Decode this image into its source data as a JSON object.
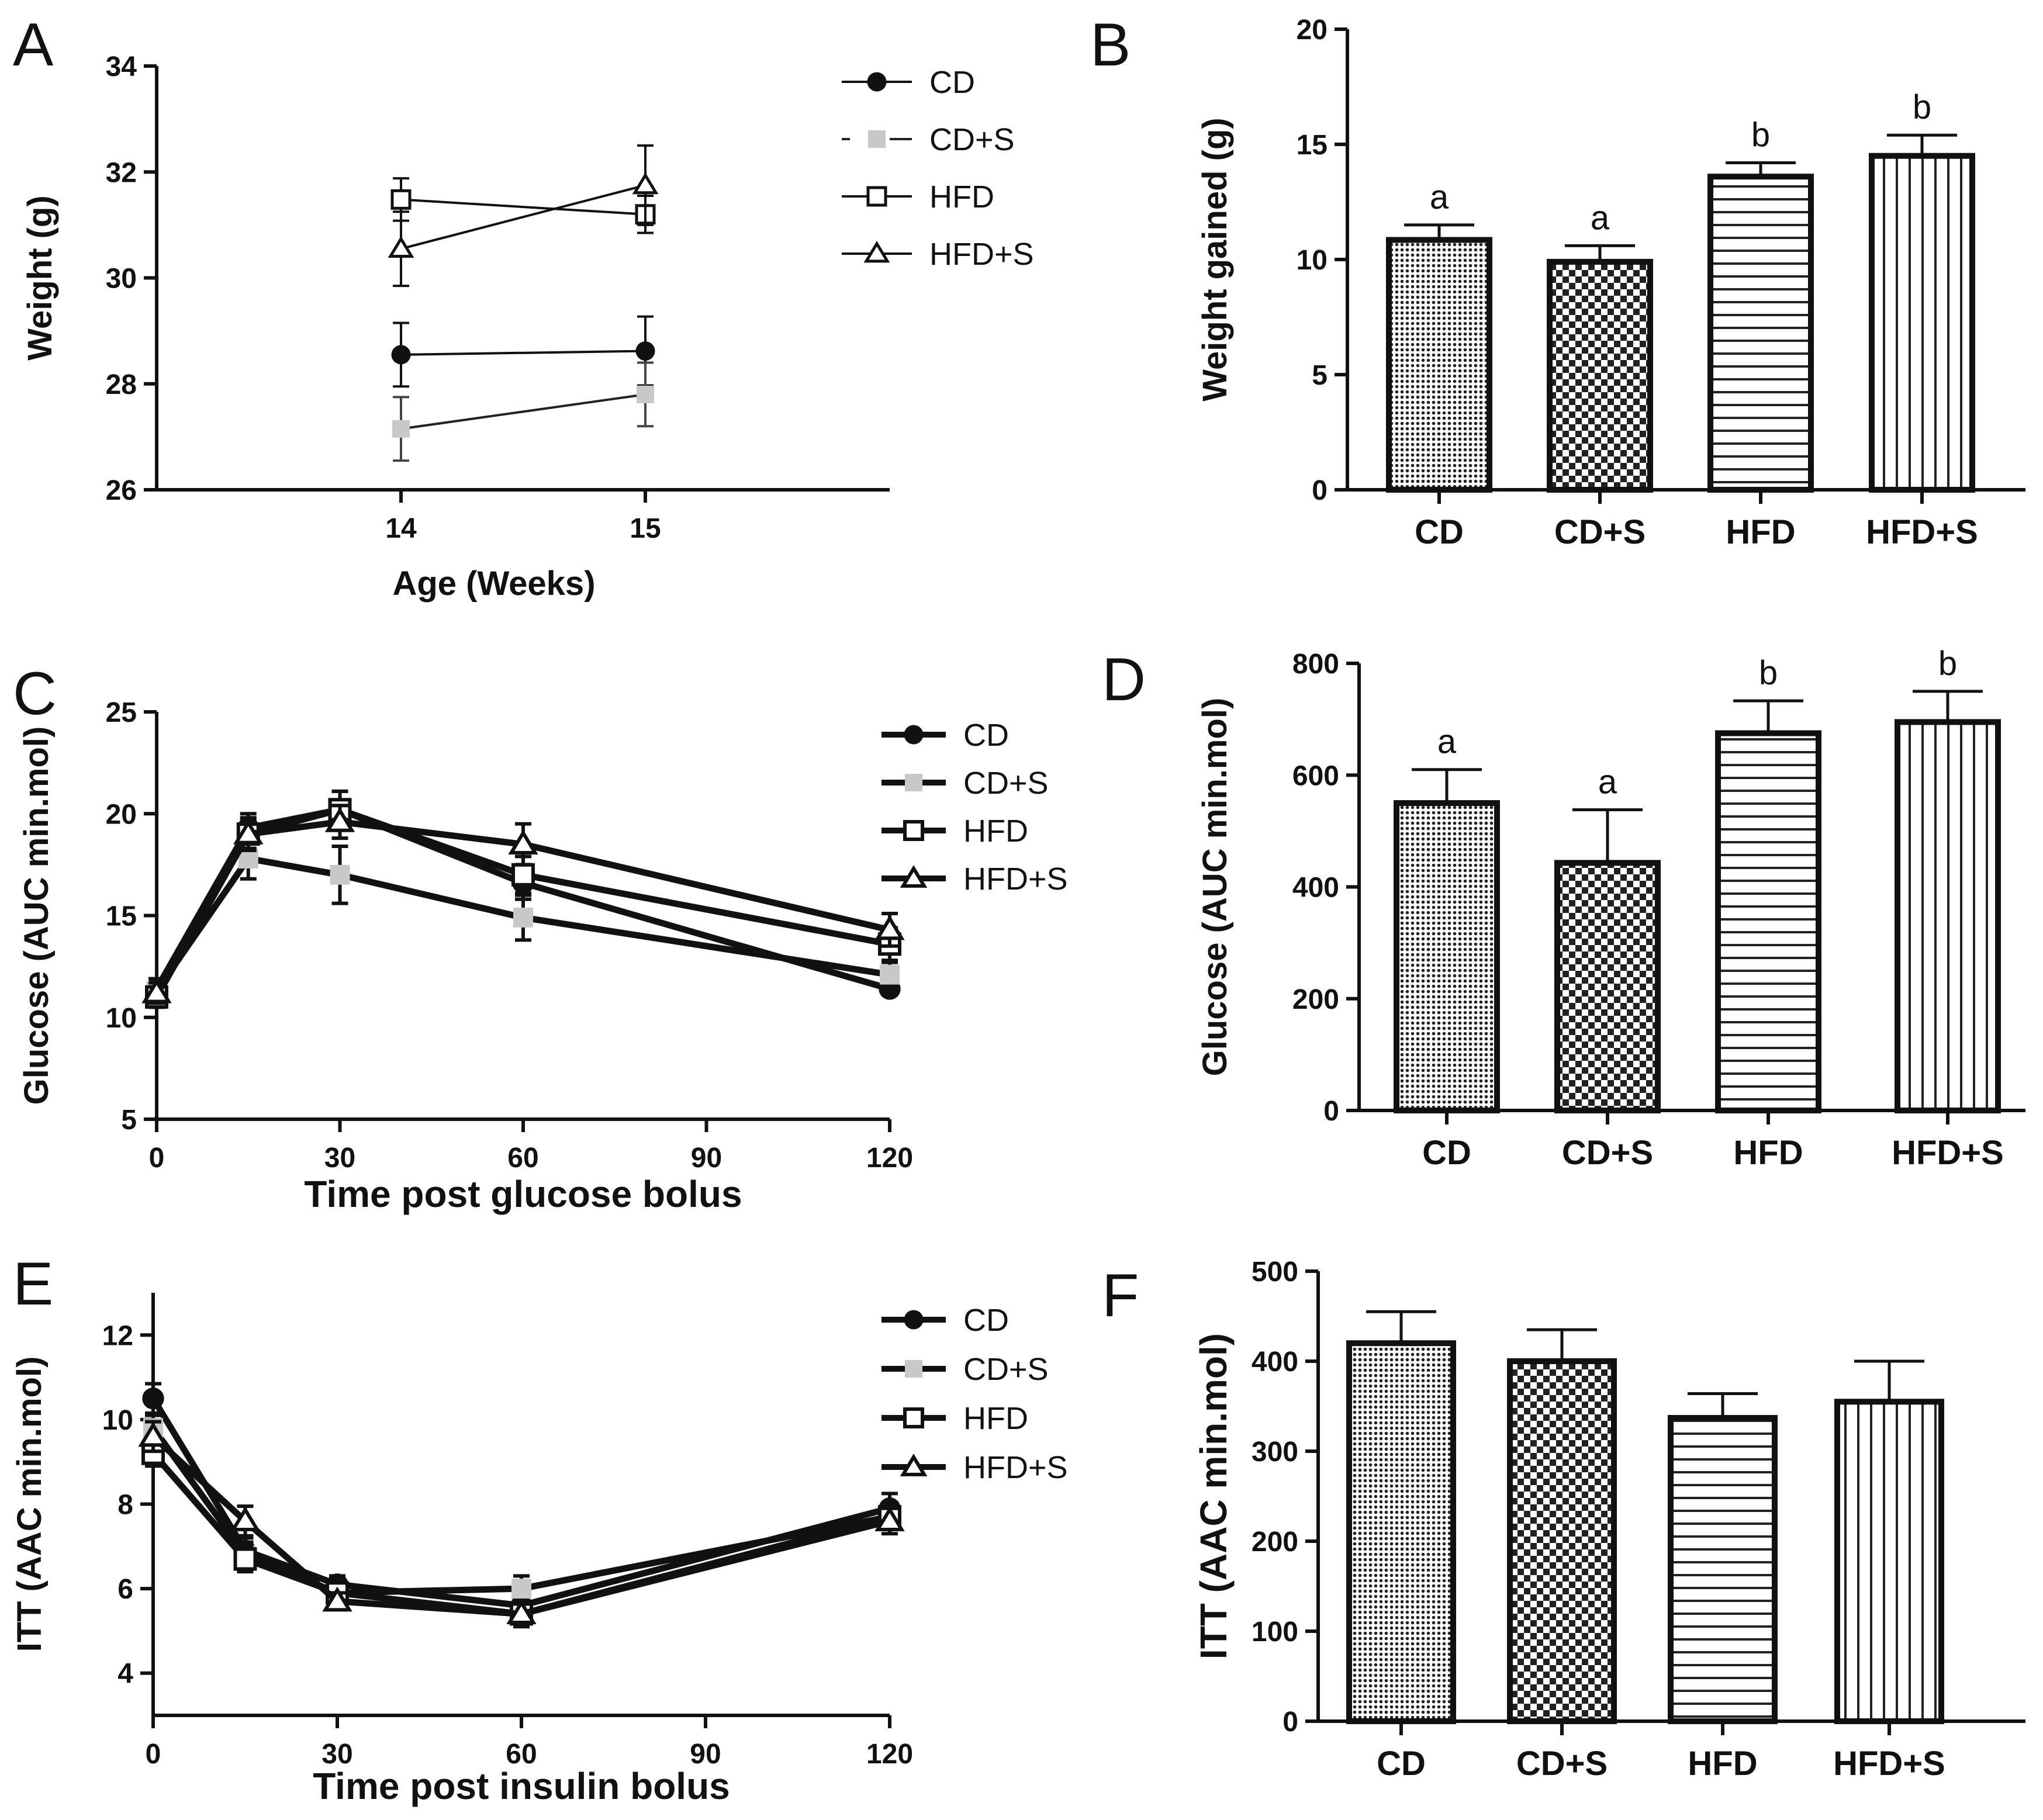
{
  "chart_data": [
    {
      "panel": "A",
      "type": "line",
      "xlabel": "Age (Weeks)",
      "ylabel": "Weight (g)",
      "xlim": [
        13,
        16
      ],
      "ylim": [
        26,
        34
      ],
      "xticks": [
        14,
        15
      ],
      "yticks": [
        26,
        28,
        30,
        32,
        34
      ],
      "x": [
        14,
        15
      ],
      "series": [
        {
          "name": "CD",
          "marker": "circle",
          "color": "#111111",
          "values": [
            28.55,
            28.62
          ],
          "errors": [
            0.6,
            0.65
          ]
        },
        {
          "name": "CD+S",
          "marker": "square",
          "color": "#c8c8c8",
          "values": [
            27.15,
            27.8
          ],
          "errors": [
            0.6,
            0.6
          ]
        },
        {
          "name": "HFD",
          "marker": "open-square",
          "color": "#111111",
          "values": [
            31.48,
            31.2
          ],
          "errors": [
            0.4,
            0.35
          ]
        },
        {
          "name": "HFD+S",
          "marker": "open-triangle",
          "color": "#111111",
          "values": [
            30.55,
            31.75
          ],
          "errors": [
            0.7,
            0.75
          ]
        }
      ]
    },
    {
      "panel": "B",
      "type": "bar",
      "xlabel": "",
      "ylabel": "Weight gained (g)",
      "ylim": [
        0,
        20
      ],
      "yticks": [
        0,
        5,
        10,
        15,
        20
      ],
      "categories": [
        "CD",
        "CD+S",
        "HFD",
        "HFD+S"
      ],
      "values": [
        10.85,
        9.9,
        13.6,
        14.5
      ],
      "errors": [
        0.65,
        0.7,
        0.6,
        0.9
      ],
      "significance": [
        "a",
        "a",
        "b",
        "b"
      ],
      "patterns": [
        "dots",
        "checker",
        "hlines",
        "vlines"
      ]
    },
    {
      "panel": "C",
      "type": "line",
      "xlabel": "Time post glucose bolus",
      "ylabel": "Glucose (AUC min.mol)",
      "xlim": [
        0,
        120
      ],
      "ylim": [
        5,
        25
      ],
      "xticks": [
        0,
        30,
        60,
        90,
        120
      ],
      "yticks": [
        5,
        10,
        15,
        20,
        25
      ],
      "x": [
        0,
        15,
        30,
        60,
        120
      ],
      "series": [
        {
          "name": "CD",
          "marker": "circle",
          "color": "#111111",
          "values": [
            11.4,
            19.3,
            20.2,
            16.6,
            11.4
          ],
          "errors": [
            0.5,
            0.7,
            0.9,
            0.8,
            0.3
          ]
        },
        {
          "name": "CD+S",
          "marker": "square",
          "color": "#c8c8c8",
          "values": [
            11.3,
            17.8,
            17.0,
            14.9,
            12.1
          ],
          "errors": [
            0.6,
            1.0,
            1.4,
            1.1,
            0.6
          ]
        },
        {
          "name": "HFD",
          "marker": "open-square",
          "color": "#111111",
          "values": [
            11.0,
            19.0,
            20.2,
            17.0,
            13.6
          ],
          "errors": [
            0.5,
            0.7,
            0.9,
            0.9,
            0.8
          ]
        },
        {
          "name": "HFD+S",
          "marker": "open-triangle",
          "color": "#111111",
          "values": [
            11.2,
            19.0,
            19.6,
            18.5,
            14.3
          ],
          "errors": [
            0.5,
            0.8,
            0.8,
            1.0,
            0.8
          ]
        }
      ]
    },
    {
      "panel": "D",
      "type": "bar",
      "xlabel": "",
      "ylabel": "Glucose (AUC min.mol)",
      "ylim": [
        0,
        800
      ],
      "yticks": [
        0,
        200,
        400,
        600,
        800
      ],
      "categories": [
        "CD",
        "CD+S",
        "HFD",
        "HFD+S"
      ],
      "values": [
        550,
        443,
        675,
        695
      ],
      "errors": [
        60,
        95,
        58,
        55
      ],
      "significance": [
        "a",
        "a",
        "b",
        "b"
      ],
      "patterns": [
        "dots",
        "checker",
        "hlines",
        "vlines"
      ]
    },
    {
      "panel": "E",
      "type": "line",
      "xlabel": "Time post insulin bolus",
      "ylabel": "ITT (AAC min.mol)",
      "xlim": [
        0,
        120
      ],
      "ylim": [
        3,
        13
      ],
      "xticks": [
        0,
        30,
        60,
        90,
        120
      ],
      "yticks": [
        4,
        6,
        8,
        10,
        12
      ],
      "x": [
        0,
        15,
        30,
        60,
        120
      ],
      "series": [
        {
          "name": "CD",
          "marker": "circle",
          "color": "#111111",
          "values": [
            10.5,
            6.9,
            6.1,
            5.6,
            7.9
          ],
          "errors": [
            0.35,
            0.3,
            0.2,
            0.3,
            0.35
          ]
        },
        {
          "name": "CD+S",
          "marker": "square",
          "color": "#c8c8c8",
          "values": [
            9.8,
            6.8,
            5.9,
            6.0,
            7.7
          ],
          "errors": [
            0.3,
            0.3,
            0.2,
            0.3,
            0.3
          ]
        },
        {
          "name": "HFD",
          "marker": "open-square",
          "color": "#111111",
          "values": [
            9.2,
            6.7,
            5.9,
            5.4,
            7.7
          ],
          "errors": [
            0.3,
            0.3,
            0.2,
            0.3,
            0.3
          ]
        },
        {
          "name": "HFD+S",
          "marker": "open-triangle",
          "color": "#111111",
          "values": [
            9.6,
            7.6,
            5.7,
            5.4,
            7.6
          ],
          "errors": [
            0.35,
            0.35,
            0.2,
            0.3,
            0.3
          ]
        }
      ]
    },
    {
      "panel": "F",
      "type": "bar",
      "xlabel": "",
      "ylabel": "ITT (AAC min.mol)",
      "ylim": [
        0,
        500
      ],
      "yticks": [
        0,
        100,
        200,
        300,
        400,
        500
      ],
      "categories": [
        "CD",
        "CD+S",
        "HFD",
        "HFD+S"
      ],
      "values": [
        420,
        400,
        337,
        355
      ],
      "errors": [
        35,
        35,
        27,
        45
      ],
      "significance": [],
      "patterns": [
        "dots",
        "checker",
        "hlines",
        "vlines"
      ]
    }
  ]
}
